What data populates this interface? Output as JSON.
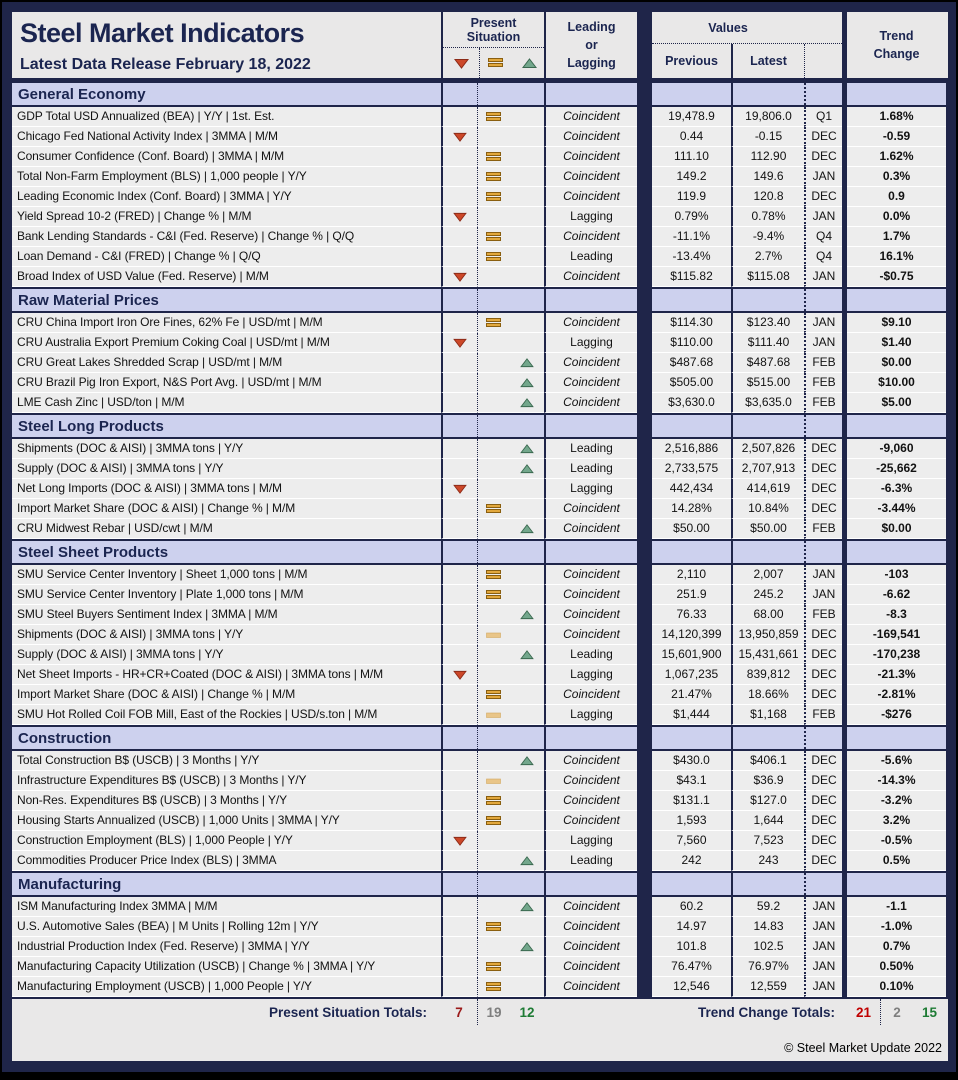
{
  "header": {
    "title": "Steel Market Indicators",
    "subtitle": "Latest Data Release February 18, 2022",
    "col_present_situation": "Present Situation",
    "col_leading_lagging": "Leading or Lagging",
    "col_values": "Values",
    "col_previous": "Previous",
    "col_latest": "Latest",
    "col_trend_change": "Trend Change"
  },
  "legend_icons": [
    "down-arrow-icon",
    "equal-icon",
    "up-arrow-icon"
  ],
  "colors": {
    "navy": "#1F2549",
    "section_band": "#CDD1EE",
    "cell_gray": "#EDEDED",
    "negative_red": "#C00000",
    "positive_green": "#1E7B34",
    "neutral_gray": "#7F7F7F",
    "down_arrow": "#CC4829",
    "up_arrow": "#73A78C",
    "equal_symbol": "#E2A83D",
    "equal_symbol_light": "#E9C588"
  },
  "sections": [
    {
      "title": "General Economy",
      "rows": [
        {
          "label": "GDP Total USD Annualized (BEA) | Y/Y | 1st. Est.",
          "situation": "equal",
          "cycle": "Coincident",
          "previous": "19,478.9",
          "latest": "19,806.0",
          "period": "Q1",
          "trend": "1.68%",
          "trend_color": "green"
        },
        {
          "label": "Chicago Fed National Activity Index | 3MMA | M/M",
          "situation": "down",
          "cycle": "Coincident",
          "previous": "0.44",
          "latest": "-0.15",
          "period": "DEC",
          "trend": "-0.59",
          "trend_color": "red"
        },
        {
          "label": "Consumer Confidence (Conf. Board) | 3MMA | M/M",
          "situation": "equal",
          "cycle": "Coincident",
          "previous": "111.10",
          "latest": "112.90",
          "period": "DEC",
          "trend": "1.62%",
          "trend_color": "green"
        },
        {
          "label": "Total Non-Farm Employment (BLS) | 1,000 people | Y/Y",
          "situation": "equal",
          "cycle": "Coincident",
          "previous": "149.2",
          "latest": "149.6",
          "period": "JAN",
          "trend": "0.3%",
          "trend_color": "green"
        },
        {
          "label": "Leading Economic Index (Conf. Board) | 3MMA | Y/Y",
          "situation": "equal",
          "cycle": "Coincident",
          "previous": "119.9",
          "latest": "120.8",
          "period": "DEC",
          "trend": "0.9",
          "trend_color": "green"
        },
        {
          "label": "Yield Spread 10-2 (FRED) | Change % | M/M",
          "situation": "down",
          "cycle": "Lagging",
          "previous": "0.79%",
          "latest": "0.78%",
          "period": "JAN",
          "trend": "0.0%",
          "trend_color": "red"
        },
        {
          "label": "Bank Lending Standards - C&I (Fed. Reserve) | Change % | Q/Q",
          "situation": "equal",
          "cycle": "Coincident",
          "previous": "-11.1%",
          "latest": "-9.4%",
          "period": "Q4",
          "trend": "1.7%",
          "trend_color": "green"
        },
        {
          "label": "Loan Demand - C&I (FRED) | Change % | Q/Q",
          "situation": "equal",
          "cycle": "Leading",
          "previous": "-13.4%",
          "latest": "2.7%",
          "period": "Q4",
          "trend": "16.1%",
          "trend_color": "green"
        },
        {
          "label": "Broad Index of USD Value (Fed. Reserve) | M/M",
          "situation": "down",
          "cycle": "Coincident",
          "previous": "$115.82",
          "latest": "$115.08",
          "period": "JAN",
          "trend": "-$0.75",
          "trend_color": "red"
        }
      ]
    },
    {
      "title": "Raw Material Prices",
      "rows": [
        {
          "label": "CRU China Import Iron Ore Fines, 62% Fe | USD/mt | M/M",
          "situation": "equal",
          "cycle": "Coincident",
          "previous": "$114.30",
          "latest": "$123.40",
          "period": "JAN",
          "trend": "$9.10",
          "trend_color": "green"
        },
        {
          "label": "CRU Australia Export Premium Coking Coal | USD/mt | M/M",
          "situation": "down",
          "cycle": "Lagging",
          "previous": "$110.00",
          "latest": "$111.40",
          "period": "JAN",
          "trend": "$1.40",
          "trend_color": "green"
        },
        {
          "label": "CRU Great Lakes Shredded Scrap | USD/mt | M/M",
          "situation": "up",
          "cycle": "Coincident",
          "previous": "$487.68",
          "latest": "$487.68",
          "period": "FEB",
          "trend": "$0.00",
          "trend_color": "black"
        },
        {
          "label": "CRU Brazil Pig Iron Export, N&S Port Avg. | USD/mt | M/M",
          "situation": "up",
          "cycle": "Coincident",
          "previous": "$505.00",
          "latest": "$515.00",
          "period": "FEB",
          "trend": "$10.00",
          "trend_color": "green"
        },
        {
          "label": "LME Cash Zinc | USD/ton | M/M",
          "situation": "up",
          "cycle": "Coincident",
          "previous": "$3,630.0",
          "latest": "$3,635.0",
          "period": "FEB",
          "trend": "$5.00",
          "trend_color": "green"
        }
      ]
    },
    {
      "title": "Steel Long Products",
      "rows": [
        {
          "label": "Shipments (DOC & AISI) | 3MMA tons | Y/Y",
          "situation": "up",
          "cycle": "Leading",
          "previous": "2,516,886",
          "latest": "2,507,826",
          "period": "DEC",
          "trend": "-9,060",
          "trend_color": "red"
        },
        {
          "label": "Supply (DOC & AISI) | 3MMA tons | Y/Y",
          "situation": "up",
          "cycle": "Leading",
          "previous": "2,733,575",
          "latest": "2,707,913",
          "period": "DEC",
          "trend": "-25,662",
          "trend_color": "red"
        },
        {
          "label": "Net Long Imports (DOC & AISI) | 3MMA tons | M/M",
          "situation": "down",
          "cycle": "Lagging",
          "previous": "442,434",
          "latest": "414,619",
          "period": "DEC",
          "trend": "-6.3%",
          "trend_color": "red"
        },
        {
          "label": "Import Market Share (DOC & AISI) | Change % | M/M",
          "situation": "equal",
          "cycle": "Coincident",
          "previous": "14.28%",
          "latest": "10.84%",
          "period": "DEC",
          "trend": "-3.44%",
          "trend_color": "red"
        },
        {
          "label": "CRU Midwest Rebar | USD/cwt | M/M",
          "situation": "up",
          "cycle": "Coincident",
          "previous": "$50.00",
          "latest": "$50.00",
          "period": "FEB",
          "trend": "$0.00",
          "trend_color": "black"
        }
      ]
    },
    {
      "title": "Steel Sheet Products",
      "rows": [
        {
          "label": "SMU Service Center Inventory | Sheet 1,000 tons | M/M",
          "situation": "equal",
          "cycle": "Coincident",
          "previous": "2,110",
          "latest": "2,007",
          "period": "JAN",
          "trend": "-103",
          "trend_color": "red"
        },
        {
          "label": "SMU Service Center Inventory | Plate 1,000 tons | M/M",
          "situation": "equal",
          "cycle": "Coincident",
          "previous": "251.9",
          "latest": "245.2",
          "period": "JAN",
          "trend": "-6.62",
          "trend_color": "red"
        },
        {
          "label": "SMU Steel Buyers Sentiment Index | 3MMA | M/M",
          "situation": "up",
          "cycle": "Coincident",
          "previous": "76.33",
          "latest": "68.00",
          "period": "FEB",
          "trend": "-8.3",
          "trend_color": "red"
        },
        {
          "label": "Shipments (DOC & AISI) | 3MMA tons | Y/Y",
          "situation": "equal_light",
          "cycle": "Coincident",
          "previous": "14,120,399",
          "latest": "13,950,859",
          "period": "DEC",
          "trend": "-169,541",
          "trend_color": "red"
        },
        {
          "label": "Supply (DOC & AISI) | 3MMA tons | Y/Y",
          "situation": "up",
          "cycle": "Leading",
          "previous": "15,601,900",
          "latest": "15,431,661",
          "period": "DEC",
          "trend": "-170,238",
          "trend_color": "red"
        },
        {
          "label": "Net Sheet Imports - HR+CR+Coated (DOC & AISI) | 3MMA tons | M/M",
          "situation": "down",
          "cycle": "Lagging",
          "previous": "1,067,235",
          "latest": "839,812",
          "period": "DEC",
          "trend": "-21.3%",
          "trend_color": "red"
        },
        {
          "label": "Import Market Share (DOC & AISI) | Change % | M/M",
          "situation": "equal",
          "cycle": "Coincident",
          "previous": "21.47%",
          "latest": "18.66%",
          "period": "DEC",
          "trend": "-2.81%",
          "trend_color": "red"
        },
        {
          "label": "SMU Hot Rolled Coil FOB Mill, East of the Rockies | USD/s.ton | M/M",
          "situation": "equal_light",
          "cycle": "Lagging",
          "previous": "$1,444",
          "latest": "$1,168",
          "period": "FEB",
          "trend": "-$276",
          "trend_color": "red"
        }
      ]
    },
    {
      "title": "Construction",
      "rows": [
        {
          "label": "Total Construction B$ (USCB) | 3 Months | Y/Y",
          "situation": "up",
          "cycle": "Coincident",
          "previous": "$430.0",
          "latest": "$406.1",
          "period": "DEC",
          "trend": "-5.6%",
          "trend_color": "red"
        },
        {
          "label": "Infrastructure Expenditures B$ (USCB) | 3 Months | Y/Y",
          "situation": "equal_light",
          "cycle": "Coincident",
          "previous": "$43.1",
          "latest": "$36.9",
          "period": "DEC",
          "trend": "-14.3%",
          "trend_color": "red"
        },
        {
          "label": "Non-Res. Expenditures B$ (USCB) | 3 Months | Y/Y",
          "situation": "equal",
          "cycle": "Coincident",
          "previous": "$131.1",
          "latest": "$127.0",
          "period": "DEC",
          "trend": "-3.2%",
          "trend_color": "red"
        },
        {
          "label": "Housing Starts Annualized (USCB) | 1,000 Units | 3MMA | Y/Y",
          "situation": "equal",
          "cycle": "Coincident",
          "previous": "1,593",
          "latest": "1,644",
          "period": "DEC",
          "trend": "3.2%",
          "trend_color": "green"
        },
        {
          "label": "Construction Employment (BLS) | 1,000 People | Y/Y",
          "situation": "down",
          "cycle": "Lagging",
          "previous": "7,560",
          "latest": "7,523",
          "period": "DEC",
          "trend": "-0.5%",
          "trend_color": "red"
        },
        {
          "label": "Commodities Producer Price Index (BLS) | 3MMA",
          "situation": "up",
          "cycle": "Leading",
          "previous": "242",
          "latest": "243",
          "period": "DEC",
          "trend": "0.5%",
          "trend_color": "green"
        }
      ]
    },
    {
      "title": "Manufacturing",
      "rows": [
        {
          "label": "ISM Manufacturing Index 3MMA | M/M",
          "situation": "up",
          "cycle": "Coincident",
          "previous": "60.2",
          "latest": "59.2",
          "period": "JAN",
          "trend": "-1.1",
          "trend_color": "red"
        },
        {
          "label": "U.S. Automotive Sales (BEA) | M Units | Rolling 12m | Y/Y",
          "situation": "equal",
          "cycle": "Coincident",
          "previous": "14.97",
          "latest": "14.83",
          "period": "JAN",
          "trend": "-1.0%",
          "trend_color": "red"
        },
        {
          "label": "Industrial Production Index (Fed. Reserve) | 3MMA | Y/Y",
          "situation": "up",
          "cycle": "Coincident",
          "previous": "101.8",
          "latest": "102.5",
          "period": "JAN",
          "trend": "0.7%",
          "trend_color": "green"
        },
        {
          "label": "Manufacturing Capacity Utilization (USCB) | Change % | 3MMA | Y/Y",
          "situation": "equal",
          "cycle": "Coincident",
          "previous": "76.47%",
          "latest": "76.97%",
          "period": "JAN",
          "trend": "0.50%",
          "trend_color": "green"
        },
        {
          "label": "Manufacturing Employment (USCB) | 1,000 People | Y/Y",
          "situation": "equal",
          "cycle": "Coincident",
          "previous": "12,546",
          "latest": "12,559",
          "period": "JAN",
          "trend": "0.10%",
          "trend_color": "green"
        }
      ]
    }
  ],
  "footer": {
    "present_totals_label": "Present Situation Totals:",
    "present_totals": {
      "down": "7",
      "neutral": "19",
      "up": "12"
    },
    "trend_totals_label": "Trend Change Totals:",
    "trend_totals": {
      "down": "21",
      "neutral": "2",
      "up": "15"
    },
    "copyright": "© Steel Market Update 2022"
  }
}
